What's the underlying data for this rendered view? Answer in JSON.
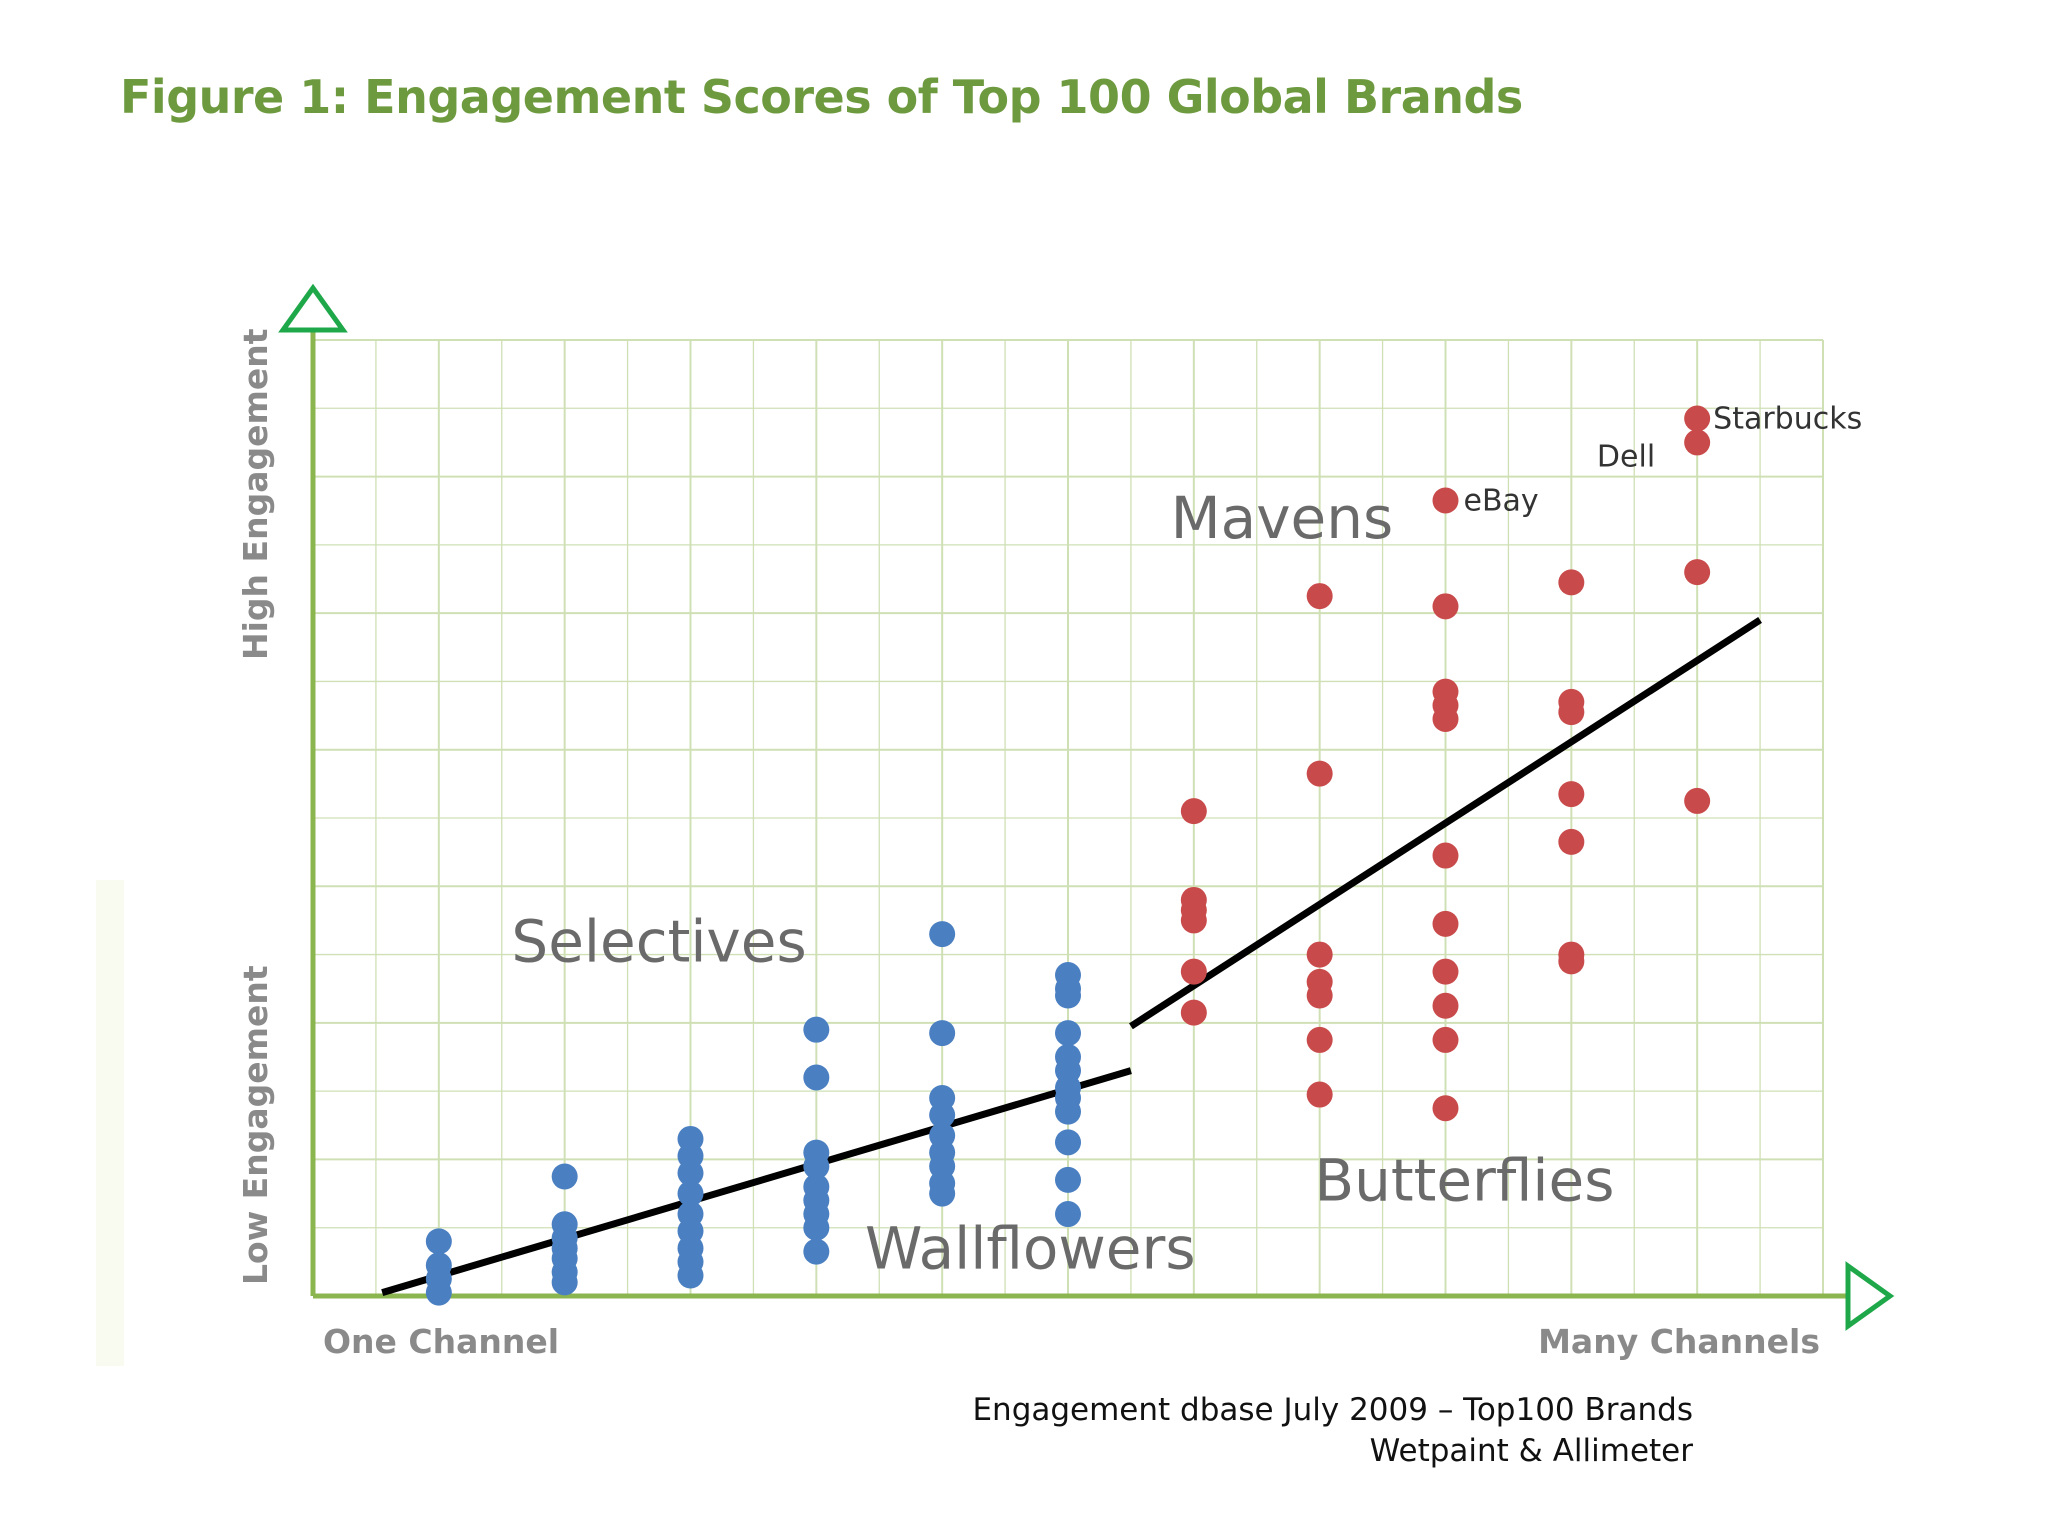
{
  "chart_data": {
    "type": "scatter",
    "title": "Figure 1: Engagement Scores of Top 100 Global Brands",
    "ylabel_high": "High Engagement",
    "ylabel_low": "Low Engagement",
    "xlabel_left": "One Channel",
    "xlabel_right": "Many Channels",
    "xlim": [
      0,
      24
    ],
    "ylim": [
      0,
      14
    ],
    "grid": true,
    "segments": [
      {
        "label": "Mavens",
        "x": 15.4,
        "y": 11.1
      },
      {
        "label": "Selectives",
        "x": 5.5,
        "y": 4.9
      },
      {
        "label": "Wallflowers",
        "x": 11.4,
        "y": 0.4
      },
      {
        "label": "Butterflies",
        "x": 18.3,
        "y": 1.4
      }
    ],
    "series": [
      {
        "color": "#4a7fc1",
        "points": [
          [
            2,
            0.8
          ],
          [
            2,
            0.45
          ],
          [
            2,
            0.25
          ],
          [
            2,
            0.05
          ],
          [
            4,
            1.75
          ],
          [
            4,
            1.05
          ],
          [
            4,
            0.85
          ],
          [
            4,
            0.7
          ],
          [
            4,
            0.55
          ],
          [
            4,
            0.35
          ],
          [
            4,
            0.2
          ],
          [
            6,
            2.3
          ],
          [
            6,
            2.05
          ],
          [
            6,
            1.8
          ],
          [
            6,
            1.5
          ],
          [
            6,
            1.2
          ],
          [
            6,
            0.95
          ],
          [
            6,
            0.7
          ],
          [
            6,
            0.5
          ],
          [
            6,
            0.3
          ],
          [
            8,
            3.9
          ],
          [
            8,
            3.2
          ],
          [
            8,
            2.1
          ],
          [
            8,
            1.9
          ],
          [
            8,
            1.6
          ],
          [
            8,
            1.4
          ],
          [
            8,
            1.2
          ],
          [
            8,
            1.0
          ],
          [
            8,
            0.65
          ],
          [
            10,
            5.3
          ],
          [
            10,
            3.85
          ],
          [
            10,
            2.9
          ],
          [
            10,
            2.65
          ],
          [
            10,
            2.35
          ],
          [
            10,
            2.1
          ],
          [
            10,
            1.9
          ],
          [
            10,
            1.65
          ],
          [
            10,
            1.5
          ],
          [
            12,
            4.7
          ],
          [
            12,
            4.5
          ],
          [
            12,
            4.4
          ],
          [
            12,
            3.85
          ],
          [
            12,
            3.5
          ],
          [
            12,
            3.3
          ],
          [
            12,
            3.05
          ],
          [
            12,
            2.9
          ],
          [
            12,
            2.7
          ],
          [
            12,
            2.25
          ],
          [
            12,
            1.7
          ],
          [
            12,
            1.2
          ]
        ]
      },
      {
        "color": "#c94a4a",
        "points": [
          [
            14,
            7.1
          ],
          [
            14,
            5.8
          ],
          [
            14,
            5.65
          ],
          [
            14,
            5.5
          ],
          [
            14,
            4.75
          ],
          [
            14,
            4.15
          ],
          [
            16,
            10.25
          ],
          [
            16,
            7.65
          ],
          [
            16,
            5.0
          ],
          [
            16,
            4.6
          ],
          [
            16,
            4.4
          ],
          [
            16,
            3.75
          ],
          [
            16,
            2.95
          ],
          [
            18,
            11.65
          ],
          [
            18,
            10.1
          ],
          [
            18,
            8.85
          ],
          [
            18,
            8.65
          ],
          [
            18,
            8.45
          ],
          [
            18,
            6.45
          ],
          [
            18,
            5.45
          ],
          [
            18,
            4.75
          ],
          [
            18,
            4.25
          ],
          [
            18,
            3.75
          ],
          [
            18,
            2.75
          ],
          [
            20,
            10.45
          ],
          [
            20,
            8.7
          ],
          [
            20,
            8.55
          ],
          [
            20,
            7.35
          ],
          [
            20,
            6.65
          ],
          [
            20,
            5.0
          ],
          [
            20,
            4.9
          ],
          [
            22,
            12.85
          ],
          [
            22,
            12.5
          ],
          [
            22,
            10.6
          ],
          [
            22,
            7.25
          ]
        ]
      }
    ],
    "annotations": [
      {
        "label": "Starbucks",
        "x": 22,
        "y": 12.85
      },
      {
        "label": "Dell",
        "x": 22,
        "y": 12.5
      },
      {
        "label": "eBay",
        "x": 18,
        "y": 11.65
      }
    ],
    "trend_lines": [
      {
        "from": [
          1.1,
          0.05
        ],
        "to": [
          13,
          3.3
        ]
      },
      {
        "from": [
          13,
          3.95
        ],
        "to": [
          23,
          9.9
        ]
      }
    ]
  },
  "source": {
    "line1": "Engagement dbase July 2009 – Top100 Brands",
    "line2": "Wetpaint & Allimeter"
  },
  "colors": {
    "title": "#6e9a3f",
    "axis": "#8bb54e",
    "arrow": "#1fa84a",
    "grid": "#cfe0b5",
    "selectives_dots": "#4a7fc1",
    "mavens_dots": "#c94a4a"
  }
}
